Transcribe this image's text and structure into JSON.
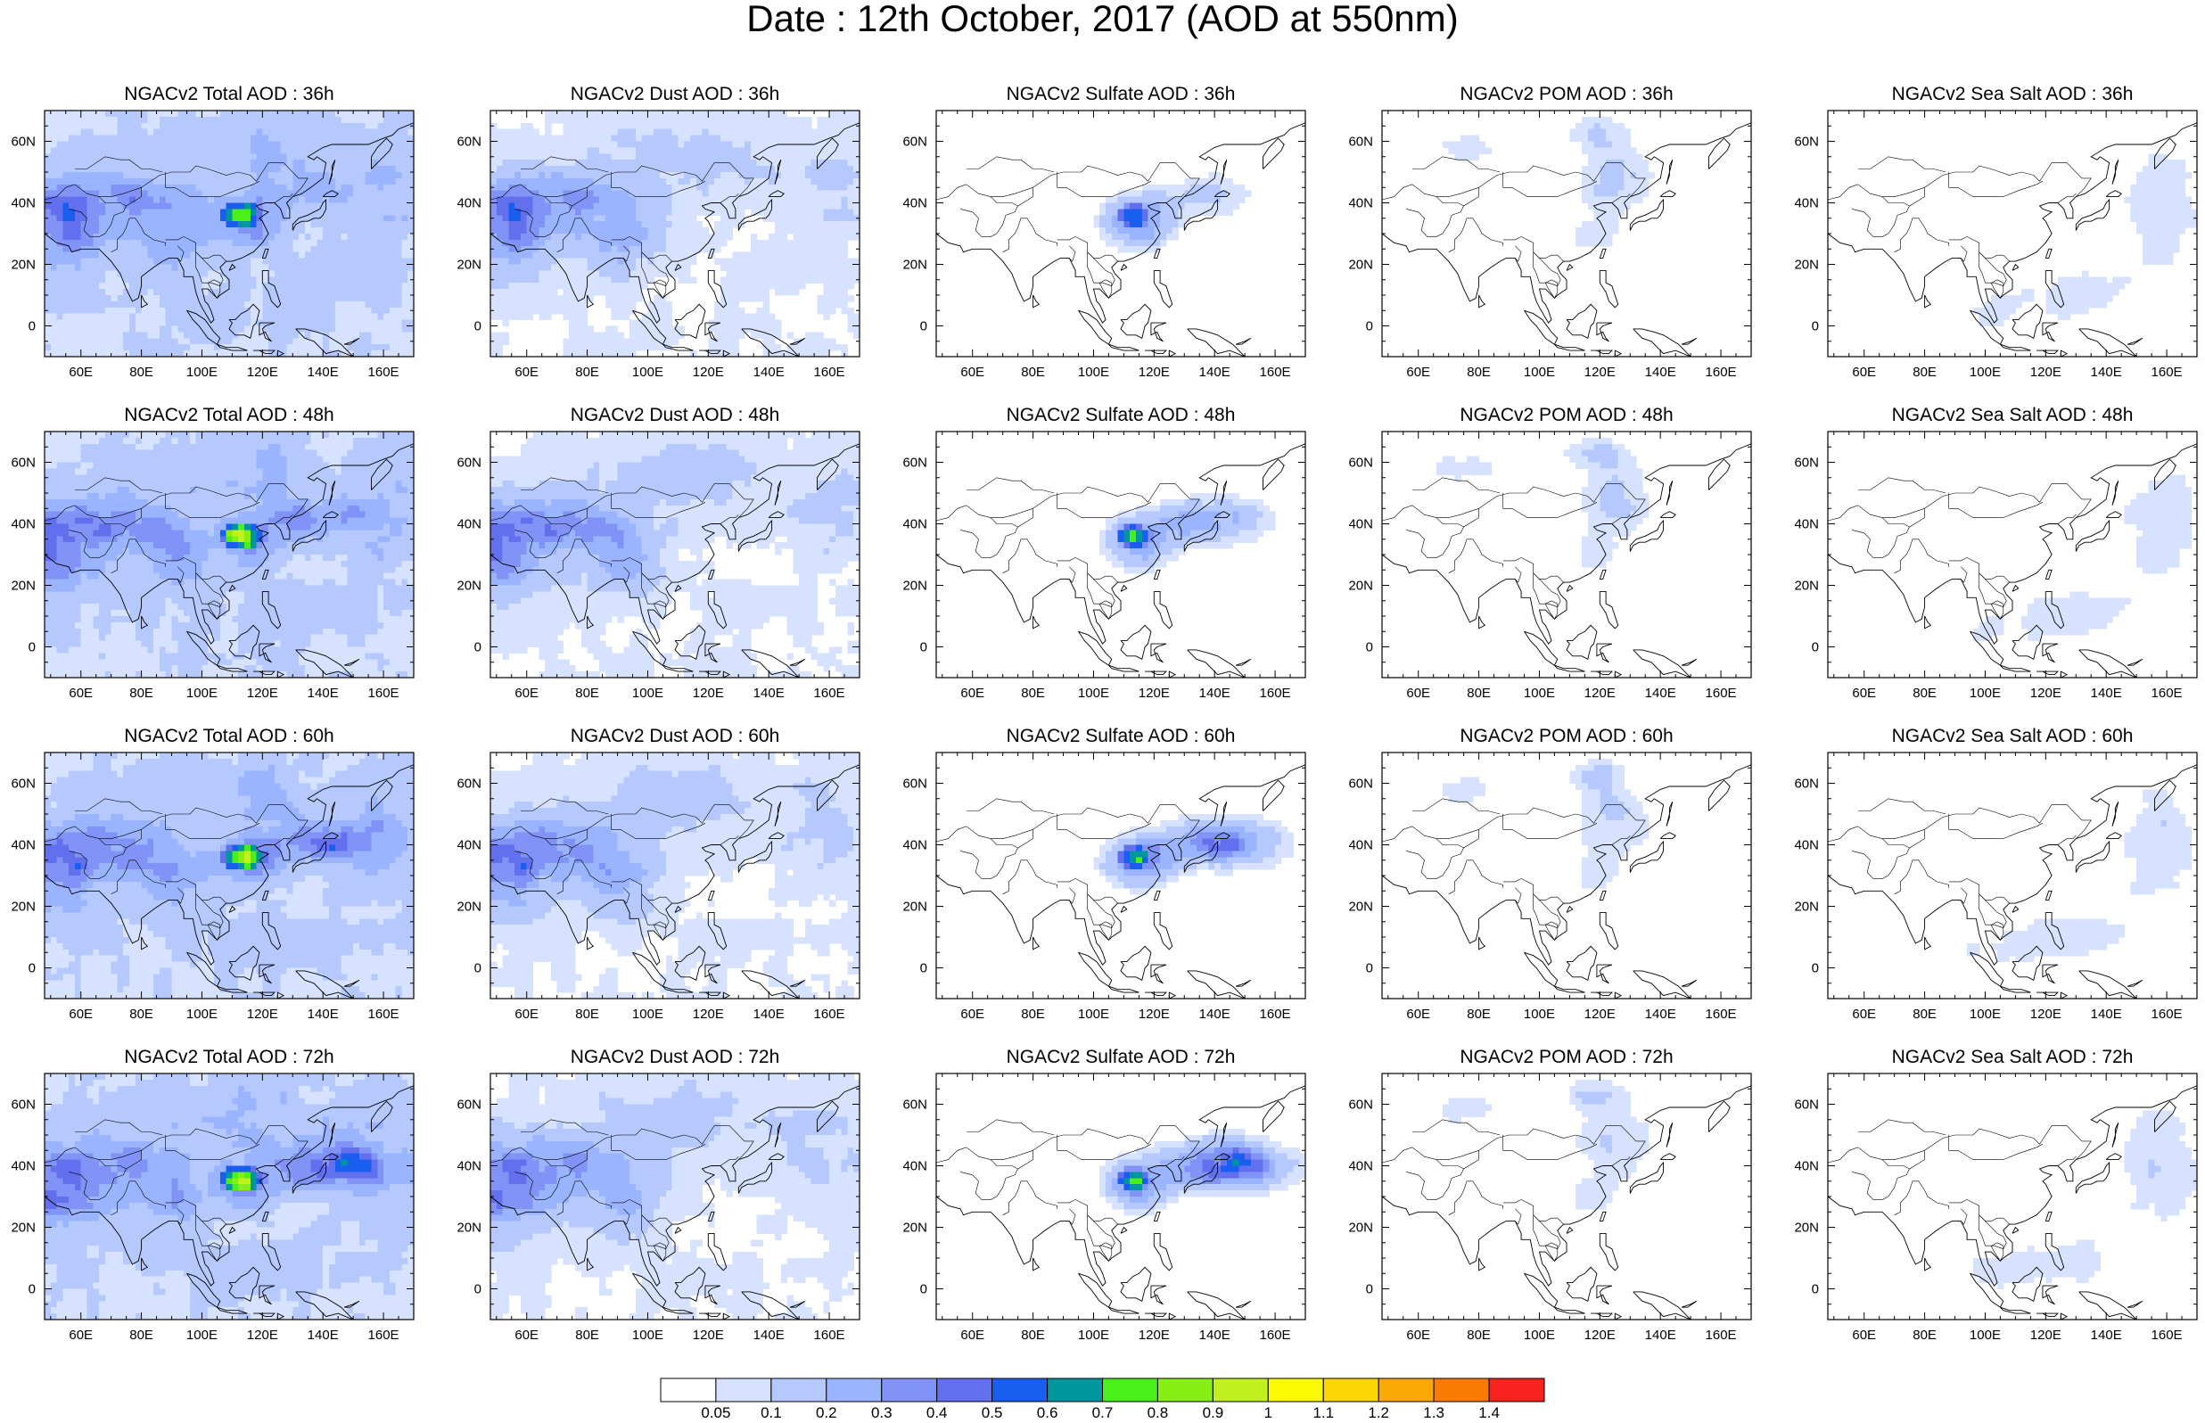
{
  "title": "Date : 12th October, 2017 (AOD at 550nm)",
  "x_tick_labels": [
    "60E",
    "80E",
    "100E",
    "120E",
    "140E",
    "160E"
  ],
  "y_tick_labels": [
    "60N",
    "40N",
    "20N",
    "0"
  ],
  "panels": [
    {
      "title": "NGACv2 Total AOD : 36h",
      "species": "total",
      "hour": 36
    },
    {
      "title": "NGACv2 Dust AOD : 36h",
      "species": "dust",
      "hour": 36
    },
    {
      "title": "NGACv2 Sulfate AOD : 36h",
      "species": "sulfate",
      "hour": 36
    },
    {
      "title": "NGACv2 POM AOD : 36h",
      "species": "pom",
      "hour": 36
    },
    {
      "title": "NGACv2 Sea Salt AOD : 36h",
      "species": "seasalt",
      "hour": 36
    },
    {
      "title": "NGACv2 Total AOD : 48h",
      "species": "total",
      "hour": 48
    },
    {
      "title": "NGACv2 Dust AOD : 48h",
      "species": "dust",
      "hour": 48
    },
    {
      "title": "NGACv2 Sulfate AOD : 48h",
      "species": "sulfate",
      "hour": 48
    },
    {
      "title": "NGACv2 POM AOD : 48h",
      "species": "pom",
      "hour": 48
    },
    {
      "title": "NGACv2 Sea Salt AOD : 48h",
      "species": "seasalt",
      "hour": 48
    },
    {
      "title": "NGACv2 Total AOD : 60h",
      "species": "total",
      "hour": 60
    },
    {
      "title": "NGACv2 Dust AOD : 60h",
      "species": "dust",
      "hour": 60
    },
    {
      "title": "NGACv2 Sulfate AOD : 60h",
      "species": "sulfate",
      "hour": 60
    },
    {
      "title": "NGACv2 POM AOD : 60h",
      "species": "pom",
      "hour": 60
    },
    {
      "title": "NGACv2 Sea Salt AOD : 60h",
      "species": "seasalt",
      "hour": 60
    },
    {
      "title": "NGACv2 Total AOD : 72h",
      "species": "total",
      "hour": 72
    },
    {
      "title": "NGACv2 Dust AOD : 72h",
      "species": "dust",
      "hour": 72
    },
    {
      "title": "NGACv2 Sulfate AOD : 72h",
      "species": "sulfate",
      "hour": 72
    },
    {
      "title": "NGACv2 POM AOD : 72h",
      "species": "pom",
      "hour": 72
    },
    {
      "title": "NGACv2 Sea Salt  AOD : 72h",
      "species": "seasalt",
      "hour": 72
    }
  ],
  "colorbar": {
    "labels": [
      "0.05",
      "0.1",
      "0.2",
      "0.3",
      "0.4",
      "0.5",
      "0.6",
      "0.7",
      "0.8",
      "0.9",
      "1",
      "1.1",
      "1.2",
      "1.3",
      "1.4"
    ],
    "colors": [
      "#ffffff",
      "#d6e2ff",
      "#b5c9ff",
      "#9bb4ff",
      "#8193f7",
      "#6270ee",
      "#1a5ef0",
      "#0096a0",
      "#4bef1b",
      "#87ef13",
      "#c1f11d",
      "#fafa05",
      "#fcd505",
      "#fca805",
      "#fc7b05",
      "#f8231f"
    ]
  }
}
